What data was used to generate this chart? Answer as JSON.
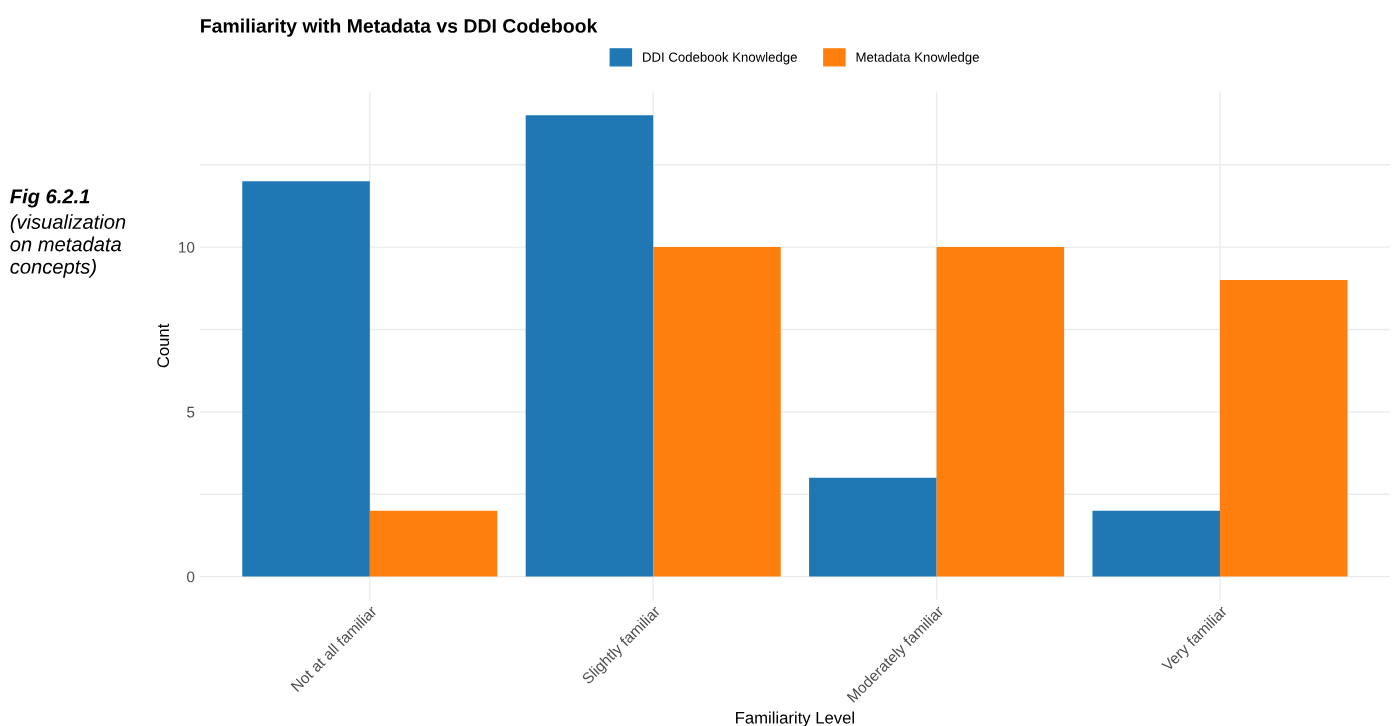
{
  "chart_data": {
    "type": "bar",
    "title": "Familiarity with Metadata vs DDI Codebook",
    "xlabel": "Familiarity Level",
    "ylabel": "Count",
    "categories": [
      "Not at all familiar",
      "Slightly familiar",
      "Moderately familiar",
      "Very familiar"
    ],
    "series": [
      {
        "name": "DDI Codebook Knowledge",
        "color": "#1f77b4",
        "values": [
          12,
          14,
          3,
          2
        ]
      },
      {
        "name": "Metadata Knowledge",
        "color": "#ff7f0e",
        "values": [
          2,
          10,
          10,
          9
        ]
      }
    ],
    "ylim": [
      -0.7,
      14.7
    ],
    "yticks": [
      0,
      {
        "value": 2.5,
        "label": null
      },
      5,
      {
        "value": 7.5,
        "label": null
      },
      10,
      {
        "value": 12.5,
        "label": null
      }
    ],
    "grid": true,
    "legend": "top",
    "annotations": [
      "Fig 6.2.1",
      "(visualization\non metadata\nconcepts)"
    ]
  }
}
